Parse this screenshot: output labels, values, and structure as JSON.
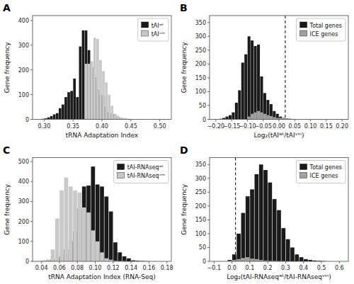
{
  "chart_data": [
    {
      "type": "bar",
      "title": "A",
      "xlabel": "tRNA Adaptation Index",
      "ylabel": "Gene frequency",
      "xlim": [
        0.28,
        0.52
      ],
      "ylim": [
        0,
        420
      ],
      "xticks": [
        {
          "value": 0.3,
          "label": "0.30"
        },
        0.35,
        {
          "value": 0.4,
          "label": "0.40"
        },
        0.45,
        {
          "value": 0.5,
          "label": "0.50"
        }
      ],
      "yticks": [
        0,
        100,
        200,
        300,
        400
      ],
      "grid": false,
      "legend": "upper right",
      "x": [
        0.2975,
        0.3025,
        0.3075,
        0.3125,
        0.3175,
        0.3225,
        0.3275,
        0.3325,
        0.3375,
        0.3425,
        0.3475,
        0.3525,
        0.3575,
        0.3625,
        0.3675,
        0.3725,
        0.3775,
        0.3825,
        0.3875,
        0.3925,
        0.3975,
        0.4025,
        0.4075,
        0.4125,
        0.4175,
        0.4225,
        0.4275,
        0.4325,
        0.4375,
        0.4425,
        0.4475,
        0.4525,
        0.4575,
        0.4625,
        0.4675,
        0.4725,
        0.4775,
        0.4825,
        0.4875,
        0.4925,
        0.4975
      ],
      "series": [
        {
          "name": "tAIʷᵗ",
          "color": "#1a1a1a",
          "values": [
            2,
            4,
            8,
            13,
            20,
            25,
            45,
            60,
            90,
            110,
            115,
            165,
            90,
            295,
            360,
            360,
            280,
            210,
            170,
            120,
            100,
            95,
            50,
            30,
            25,
            20,
            10,
            5,
            3,
            2,
            1,
            0,
            0,
            0,
            0,
            0,
            0,
            0,
            0,
            0,
            0
          ]
        },
        {
          "name": "tAIᵛᵐ",
          "color": "#c8c8c8",
          "values": [
            0,
            0,
            0,
            0,
            0,
            0,
            0,
            0,
            0,
            0,
            0,
            0,
            0,
            0,
            0,
            225,
            225,
            235,
            330,
            325,
            240,
            195,
            150,
            100,
            55,
            20,
            15,
            8,
            5,
            3,
            2,
            1,
            0,
            0,
            0,
            0,
            0,
            0,
            0,
            0,
            0
          ]
        }
      ]
    },
    {
      "type": "bar",
      "title": "B",
      "xlabel": "Log₂(tAIʷᵗ/tAIᵛᵐ)",
      "ylabel": "Gene frequency",
      "xlim": [
        -0.22,
        0.22
      ],
      "ylim": [
        0,
        375
      ],
      "xticks": [
        {
          "value": -0.2,
          "label": "−0.20"
        },
        {
          "value": -0.15,
          "label": "−0.15"
        },
        {
          "value": -0.1,
          "label": "−0.10"
        },
        {
          "value": -0.05,
          "label": "−0.05"
        },
        {
          "value": 0.0,
          "label": "0.00"
        },
        0.05,
        {
          "value": 0.1,
          "label": "0.10"
        },
        0.15,
        {
          "value": 0.2,
          "label": "0.20"
        }
      ],
      "yticks": [
        0,
        50,
        100,
        150,
        200,
        250,
        300,
        350
      ],
      "grid": false,
      "legend": "upper right",
      "vline": 0.02,
      "x": [
        -0.195,
        -0.185,
        -0.175,
        -0.165,
        -0.155,
        -0.145,
        -0.135,
        -0.125,
        -0.115,
        -0.105,
        -0.095,
        -0.085,
        -0.075,
        -0.065,
        -0.055,
        -0.045,
        -0.035,
        -0.025,
        -0.015,
        -0.005,
        0.005,
        0.015,
        0.025,
        0.035,
        0.045,
        0.055,
        0.065,
        0.075,
        0.085,
        0.095,
        0.105,
        0.115,
        0.125,
        0.135,
        0.145,
        0.155,
        0.165,
        0.175,
        0.185,
        0.195
      ],
      "series": [
        {
          "name": "Total genes",
          "color": "#1a1a1a",
          "values": [
            0,
            2,
            5,
            10,
            15,
            25,
            60,
            105,
            205,
            235,
            300,
            285,
            265,
            270,
            155,
            95,
            70,
            55,
            30,
            20,
            10,
            5,
            3,
            2,
            0,
            0,
            0,
            0,
            0,
            0,
            0,
            0,
            0,
            0,
            0,
            0,
            0,
            0,
            0,
            0
          ]
        },
        {
          "name": "ICE genes",
          "color": "#a0a0a0",
          "values": [
            0,
            0,
            0,
            0,
            0,
            0,
            0,
            0,
            0,
            0,
            10,
            20,
            25,
            30,
            25,
            20,
            15,
            12,
            8,
            5,
            5,
            5,
            3,
            2,
            0,
            0,
            0,
            0,
            0,
            0,
            0,
            0,
            0,
            0,
            0,
            0,
            0,
            0,
            0,
            0
          ]
        }
      ]
    },
    {
      "type": "bar",
      "title": "C",
      "xlabel": "tRNA Adaptation Index (RNA-Seq)",
      "ylabel": "Gene frequency",
      "xlim": [
        0.03,
        0.185
      ],
      "ylim": [
        0,
        520
      ],
      "xticks": [
        0.04,
        0.06,
        0.08,
        {
          "value": 0.1,
          "label": "0.10"
        },
        0.12,
        0.14,
        0.16,
        0.18
      ],
      "yticks": [
        0,
        100,
        200,
        300,
        400,
        500
      ],
      "grid": false,
      "legend": "upper right",
      "x": [
        0.0375,
        0.0425,
        0.0475,
        0.0525,
        0.0575,
        0.0625,
        0.0675,
        0.0725,
        0.0775,
        0.0825,
        0.0875,
        0.0925,
        0.0975,
        0.1025,
        0.1075,
        0.1125,
        0.1175,
        0.1225,
        0.1275,
        0.1325,
        0.1375,
        0.1425,
        0.1475,
        0.1525,
        0.1575,
        0.1625,
        0.1675,
        0.1725,
        0.1775
      ],
      "series": [
        {
          "name": "tAI-RNAseqʷᵗ",
          "color": "#1a1a1a",
          "values": [
            0,
            2,
            5,
            10,
            20,
            25,
            60,
            100,
            150,
            265,
            375,
            380,
            475,
            385,
            375,
            325,
            250,
            95,
            45,
            25,
            15,
            5,
            3,
            2,
            1,
            0,
            0,
            0,
            0
          ]
        },
        {
          "name": "tAI-RNAseqᵛᵐ",
          "color": "#c8c8c8",
          "values": [
            2,
            5,
            10,
            60,
            215,
            355,
            420,
            375,
            355,
            345,
            270,
            245,
            155,
            100,
            45,
            15,
            8,
            3,
            2,
            1,
            0,
            0,
            0,
            0,
            0,
            0,
            0,
            0,
            0
          ]
        }
      ]
    },
    {
      "type": "bar",
      "title": "D",
      "xlabel": "Log₂(tAI-RNAseqʷᵗ/tAI-RNAseqᵛᵐ)",
      "ylabel": "Gene frequency",
      "xlim": [
        -0.125,
        0.65
      ],
      "ylim": [
        0,
        375
      ],
      "xticks": [
        {
          "value": -0.1,
          "label": "−0.1"
        },
        {
          "value": 0.0,
          "label": "0.0"
        },
        0.1,
        0.2,
        0.3,
        0.4,
        0.5,
        0.6
      ],
      "yticks": [
        0,
        50,
        100,
        150,
        200,
        250,
        300,
        350
      ],
      "grid": false,
      "legend": "upper right",
      "vline": 0.02,
      "x": [
        -0.1125,
        -0.0875,
        -0.0625,
        -0.0375,
        -0.0125,
        0.0125,
        0.0375,
        0.0625,
        0.0875,
        0.1125,
        0.1375,
        0.1625,
        0.1875,
        0.2125,
        0.2375,
        0.2625,
        0.2875,
        0.3125,
        0.3375,
        0.3625,
        0.3875,
        0.4125,
        0.4375,
        0.4625,
        0.4875,
        0.5125,
        0.5375,
        0.5625,
        0.5875,
        0.6125
      ],
      "series": [
        {
          "name": "Total genes",
          "color": "#1a1a1a",
          "values": [
            0,
            0,
            0,
            0,
            5,
            25,
            100,
            175,
            235,
            260,
            315,
            350,
            330,
            285,
            225,
            185,
            120,
            80,
            50,
            25,
            15,
            8,
            5,
            3,
            2,
            1,
            0,
            0,
            0,
            0
          ]
        },
        {
          "name": "ICE genes",
          "color": "#a0a0a0",
          "values": [
            0,
            0,
            0,
            0,
            2,
            5,
            8,
            12,
            15,
            10,
            8,
            5,
            3,
            2,
            2,
            1,
            1,
            0,
            0,
            0,
            0,
            0,
            0,
            0,
            0,
            0,
            0,
            0,
            0,
            0
          ]
        }
      ]
    }
  ]
}
